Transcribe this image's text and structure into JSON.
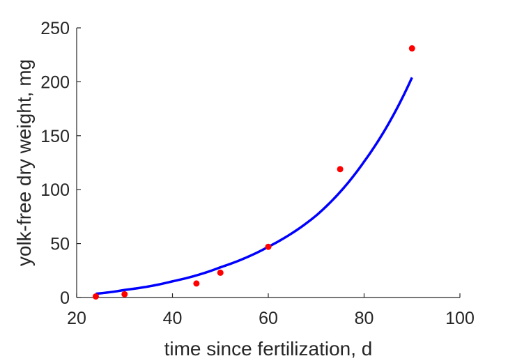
{
  "chart_data": {
    "type": "scatter",
    "title": "",
    "xlabel": "time since fertilization, d",
    "ylabel": "yolk-free dry weight, mg",
    "xlim": [
      20,
      100
    ],
    "ylim": [
      0,
      250
    ],
    "xticks": [
      20,
      40,
      60,
      80,
      100
    ],
    "yticks": [
      0,
      50,
      100,
      150,
      200,
      250
    ],
    "xtick_labels": [
      "20",
      "40",
      "60",
      "80",
      "100"
    ],
    "ytick_labels": [
      "0",
      "50",
      "100",
      "150",
      "200",
      "250"
    ],
    "grid": false,
    "legend": "none",
    "series": [
      {
        "kind": "points",
        "color": "#ff0000",
        "x": [
          24,
          30,
          45,
          50,
          60,
          75,
          90
        ],
        "y": [
          1,
          3,
          13,
          23,
          47,
          119,
          231
        ]
      },
      {
        "kind": "fit-line",
        "color": "#0000ff",
        "x": [
          24,
          30,
          40,
          50,
          60,
          70,
          80,
          90
        ],
        "y": [
          3.5,
          7,
          15,
          28,
          47,
          76,
          126,
          204
        ]
      }
    ]
  }
}
